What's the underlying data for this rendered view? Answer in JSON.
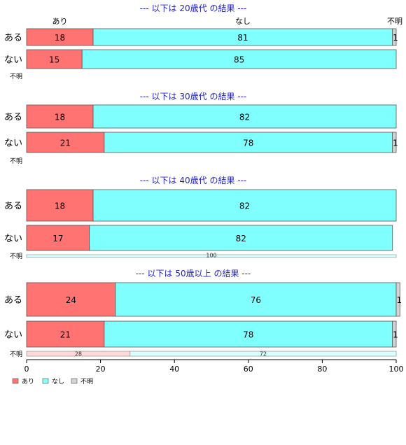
{
  "chart_data": {
    "type": "bar",
    "orientation": "horizontal-stacked-100",
    "categories_top": [
      "あり",
      "なし",
      "不明"
    ],
    "colors": {
      "あり": "#ff7373",
      "なし": "#80ffff",
      "不明": "#d3d3d3"
    },
    "xlim": [
      0,
      100
    ],
    "xticks": [
      "0",
      "20",
      "40",
      "60",
      "80",
      "100"
    ],
    "legend": {
      "placement": "bottom-left",
      "items": [
        {
          "name": "あり",
          "color": "#ff7373"
        },
        {
          "name": "なし",
          "color": "#80ffff"
        },
        {
          "name": "不明",
          "color": "#d3d3d3"
        }
      ]
    },
    "panels": [
      {
        "title": "--- 以下は 20歳代 の結果 ---",
        "show_top_labels": true,
        "rows": [
          {
            "label": "ある",
            "values": [
              18,
              81,
              1
            ],
            "labels": [
              "18",
              "81",
              "1"
            ]
          },
          {
            "label": "ない",
            "values": [
              15,
              85,
              0
            ],
            "labels": [
              "15",
              "85",
              ""
            ]
          }
        ],
        "unknown": {
          "label": "不明",
          "values": [
            0,
            0,
            0
          ],
          "labels": [
            "",
            "",
            ""
          ]
        }
      },
      {
        "title": "--- 以下は 30歳代 の結果 ---",
        "show_top_labels": false,
        "rows": [
          {
            "label": "ある",
            "values": [
              18,
              82,
              0
            ],
            "labels": [
              "18",
              "82",
              ""
            ]
          },
          {
            "label": "ない",
            "values": [
              21,
              78,
              1
            ],
            "labels": [
              "21",
              "78",
              "1"
            ]
          }
        ],
        "unknown": {
          "label": "不明",
          "values": [
            0,
            0,
            0
          ],
          "labels": [
            "",
            "",
            ""
          ]
        }
      },
      {
        "title": "--- 以下は 40歳代 の結果 ---",
        "show_top_labels": false,
        "rows": [
          {
            "label": "ある",
            "values": [
              18,
              82,
              0
            ],
            "labels": [
              "18",
              "82",
              ""
            ]
          },
          {
            "label": "ない",
            "values": [
              17,
              82,
              0
            ],
            "labels": [
              "17",
              "82",
              ""
            ]
          }
        ],
        "unknown": {
          "label": "不明",
          "values": [
            0,
            100,
            0
          ],
          "labels": [
            "",
            "100",
            ""
          ]
        }
      },
      {
        "title": "--- 以下は 50歳以上 の結果 ---",
        "show_top_labels": false,
        "rows": [
          {
            "label": "ある",
            "values": [
              24,
              76,
              1
            ],
            "labels": [
              "24",
              "76",
              "1"
            ]
          },
          {
            "label": "ない",
            "values": [
              21,
              78,
              1
            ],
            "labels": [
              "21",
              "78",
              "1"
            ]
          }
        ],
        "unknown": {
          "label": "不明",
          "values": [
            28,
            72,
            0
          ],
          "labels": [
            "28",
            "72",
            ""
          ]
        }
      }
    ]
  }
}
